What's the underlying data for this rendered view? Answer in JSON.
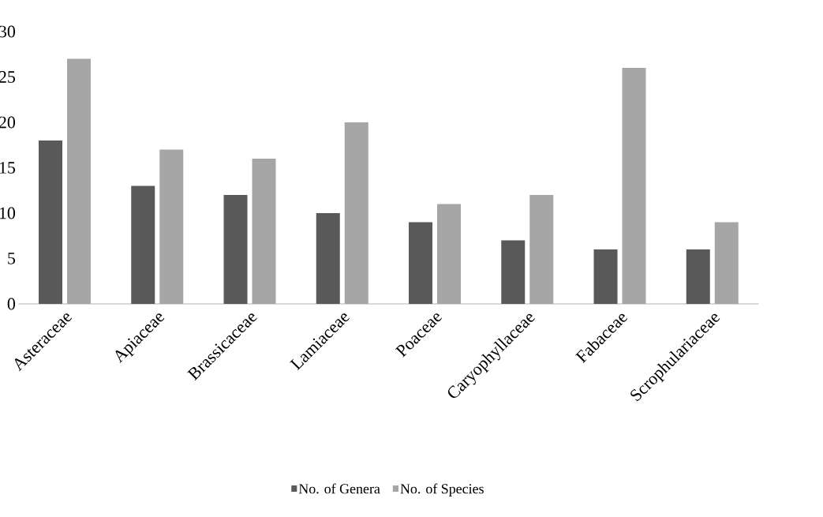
{
  "chart_data": {
    "type": "bar",
    "categories": [
      "Asteraceae",
      "Apiaceae",
      "Brassicaceae",
      "Lamiaceae",
      "Poaceae",
      "Caryophyllaceae",
      "Fabaceae",
      "Scrophulariaceae"
    ],
    "series": [
      {
        "name": "No. of Genera",
        "color": "#595959",
        "values": [
          18,
          13,
          12,
          10,
          9,
          7,
          6,
          6
        ]
      },
      {
        "name": "No. of Species",
        "color": "#a6a6a6",
        "values": [
          27,
          17,
          16,
          20,
          11,
          12,
          26,
          9
        ]
      }
    ],
    "ylim": [
      0,
      30
    ],
    "yticks": [
      0,
      5,
      10,
      15,
      20,
      25,
      30
    ],
    "legend": "bottom"
  }
}
